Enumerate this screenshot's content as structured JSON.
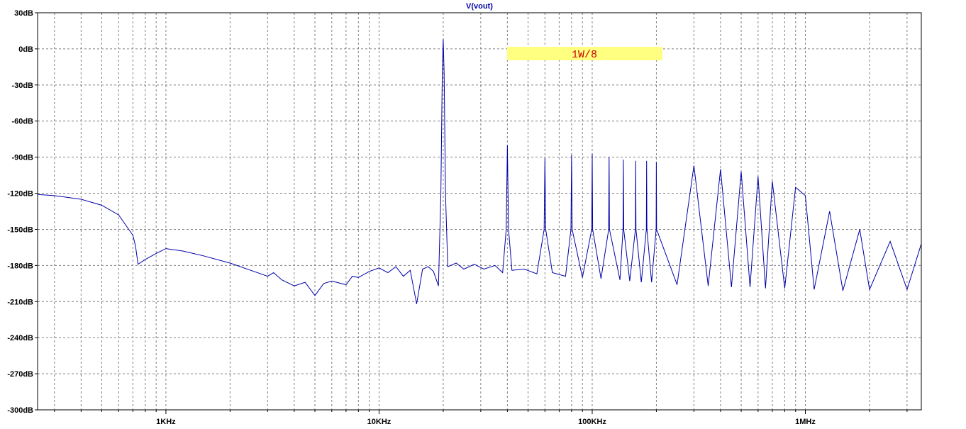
{
  "chart_data": {
    "type": "line",
    "title": "V(vout)",
    "xlabel": "",
    "ylabel": "",
    "x_scale": "log",
    "xlim": [
      250,
      3500000
    ],
    "ylim": [
      -300,
      30
    ],
    "grid": true,
    "x_ticks": [
      {
        "value": 1000,
        "label": "1KHz"
      },
      {
        "value": 10000,
        "label": "10KHz"
      },
      {
        "value": 100000,
        "label": "100KHz"
      },
      {
        "value": 1000000,
        "label": "1MHz"
      }
    ],
    "y_ticks": [
      {
        "value": 30,
        "label": "30dB"
      },
      {
        "value": 0,
        "label": "0dB"
      },
      {
        "value": -30,
        "label": "-30dB"
      },
      {
        "value": -60,
        "label": "-60dB"
      },
      {
        "value": -90,
        "label": "-90dB"
      },
      {
        "value": -120,
        "label": "-120dB"
      },
      {
        "value": -150,
        "label": "-150dB"
      },
      {
        "value": -180,
        "label": "-180dB"
      },
      {
        "value": -210,
        "label": "-210dB"
      },
      {
        "value": -240,
        "label": "-240dB"
      },
      {
        "value": -270,
        "label": "-270dB"
      },
      {
        "value": -300,
        "label": "-300dB"
      }
    ],
    "annotation": {
      "text": "1W/8",
      "x": 100000,
      "y": -4,
      "background": "#ffff80",
      "color": "#cc0000"
    },
    "fundamental_hz": 20000,
    "series": [
      {
        "color": "#0000aa",
        "points": [
          [
            250,
            -121
          ],
          [
            300,
            -122
          ],
          [
            400,
            -125
          ],
          [
            500,
            -130
          ],
          [
            600,
            -138
          ],
          [
            700,
            -155
          ],
          [
            720,
            -164
          ],
          [
            740,
            -179
          ],
          [
            800,
            -175
          ],
          [
            900,
            -170
          ],
          [
            1000,
            -166
          ],
          [
            1200,
            -168
          ],
          [
            1500,
            -172
          ],
          [
            2000,
            -178
          ],
          [
            2500,
            -184
          ],
          [
            3000,
            -189
          ],
          [
            3200,
            -186
          ],
          [
            3500,
            -192
          ],
          [
            4000,
            -197
          ],
          [
            4500,
            -194
          ],
          [
            5000,
            -205
          ],
          [
            5500,
            -195
          ],
          [
            6000,
            -193
          ],
          [
            7000,
            -196
          ],
          [
            7500,
            -189
          ],
          [
            8000,
            -190
          ],
          [
            9000,
            -185
          ],
          [
            10000,
            -182
          ],
          [
            11000,
            -186
          ],
          [
            12000,
            -181
          ],
          [
            13000,
            -189
          ],
          [
            14000,
            -184
          ],
          [
            15000,
            -212
          ],
          [
            16000,
            -183
          ],
          [
            17000,
            -181
          ],
          [
            18000,
            -185
          ],
          [
            19000,
            -197
          ],
          [
            19500,
            -120
          ],
          [
            19800,
            -20
          ],
          [
            20000,
            8
          ],
          [
            20200,
            -20
          ],
          [
            20500,
            -120
          ],
          [
            21000,
            -181
          ],
          [
            23000,
            -178
          ],
          [
            25000,
            -183
          ],
          [
            28000,
            -179
          ],
          [
            31000,
            -183
          ],
          [
            35000,
            -180
          ],
          [
            38000,
            -186
          ],
          [
            39500,
            -150
          ],
          [
            40000,
            -80
          ],
          [
            40500,
            -150
          ],
          [
            42000,
            -184
          ],
          [
            48000,
            -183
          ],
          [
            55000,
            -187
          ],
          [
            59500,
            -150
          ],
          [
            60000,
            -91
          ],
          [
            60500,
            -150
          ],
          [
            65000,
            -186
          ],
          [
            75000,
            -189
          ],
          [
            79500,
            -150
          ],
          [
            80000,
            -88
          ],
          [
            80500,
            -150
          ],
          [
            90000,
            -190
          ],
          [
            99500,
            -150
          ],
          [
            100000,
            -87
          ],
          [
            100500,
            -150
          ],
          [
            110000,
            -191
          ],
          [
            119500,
            -150
          ],
          [
            120000,
            -90
          ],
          [
            120500,
            -150
          ],
          [
            135000,
            -192
          ],
          [
            139500,
            -150
          ],
          [
            140000,
            -92
          ],
          [
            140500,
            -150
          ],
          [
            150000,
            -193
          ],
          [
            159500,
            -150
          ],
          [
            160000,
            -93
          ],
          [
            160500,
            -150
          ],
          [
            170000,
            -194
          ],
          [
            179500,
            -150
          ],
          [
            180000,
            -93
          ],
          [
            180500,
            -150
          ],
          [
            190000,
            -194
          ],
          [
            199500,
            -150
          ],
          [
            200000,
            -94
          ],
          [
            200500,
            -150
          ],
          [
            250000,
            -196
          ],
          [
            300000,
            -97
          ],
          [
            350000,
            -197
          ],
          [
            400000,
            -100
          ],
          [
            450000,
            -198
          ],
          [
            500000,
            -102
          ],
          [
            550000,
            -198
          ],
          [
            600000,
            -106
          ],
          [
            650000,
            -199
          ],
          [
            700000,
            -110
          ],
          [
            800000,
            -199
          ],
          [
            900000,
            -115
          ],
          [
            1000000,
            -122
          ],
          [
            1100000,
            -200
          ],
          [
            1300000,
            -135
          ],
          [
            1500000,
            -201
          ],
          [
            1800000,
            -150
          ],
          [
            2000000,
            -200
          ],
          [
            2500000,
            -160
          ],
          [
            3000000,
            -200
          ],
          [
            3500000,
            -162
          ]
        ]
      }
    ]
  }
}
